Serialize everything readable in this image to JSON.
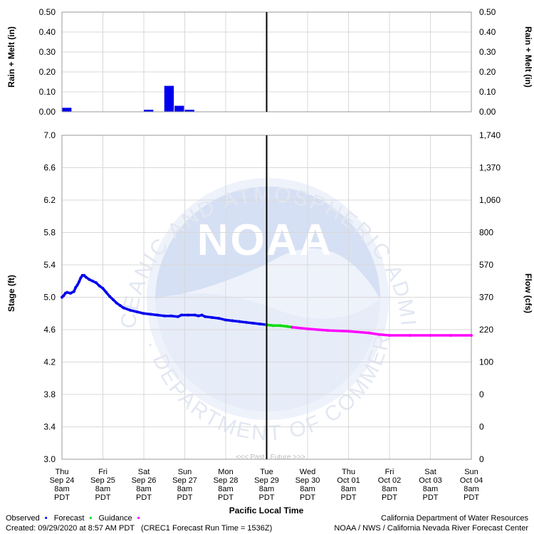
{
  "chart_data": [
    {
      "type": "bar",
      "ylabel_left": "Rain + Melt (in)",
      "ylabel_right": "Rain + Melt (in)",
      "yticks": [
        "0.00",
        "0.10",
        "0.20",
        "0.30",
        "0.40",
        "0.50"
      ],
      "ylim": [
        0,
        0.5
      ],
      "xlim_hours": [
        0,
        240
      ],
      "bar_width_hours": 6,
      "bars": [
        {
          "t": 3,
          "v": 0.02
        },
        {
          "t": 51,
          "v": 0.01
        },
        {
          "t": 63,
          "v": 0.13
        },
        {
          "t": 69,
          "v": 0.03
        },
        {
          "t": 75,
          "v": 0.01
        }
      ],
      "color": "#0000ee"
    },
    {
      "type": "line",
      "ylabel_left": "Stage (ft)",
      "ylabel_right": "Flow (cfs)",
      "xlabel": "Pacific Local Time",
      "ylim": [
        3.0,
        7.0
      ],
      "yticks_left": [
        "3.0",
        "3.4",
        "3.8",
        "4.2",
        "4.6",
        "5.0",
        "5.4",
        "5.8",
        "6.2",
        "6.6",
        "7.0"
      ],
      "yticks_right": [
        "0",
        "0",
        "0",
        "100",
        "220",
        "370",
        "570",
        "800",
        "1,060",
        "1,370",
        "1,740"
      ],
      "x_categories": [
        [
          "Thu",
          "Sep 24",
          "8am",
          "PDT"
        ],
        [
          "Fri",
          "Sep 25",
          "8am",
          "PDT"
        ],
        [
          "Sat",
          "Sep 26",
          "8am",
          "PDT"
        ],
        [
          "Sun",
          "Sep 27",
          "8am",
          "PDT"
        ],
        [
          "Mon",
          "Sep 28",
          "8am",
          "PDT"
        ],
        [
          "Tue",
          "Sep 29",
          "8am",
          "PDT"
        ],
        [
          "Wed",
          "Sep 30",
          "8am",
          "PDT"
        ],
        [
          "Thu",
          "Oct 01",
          "8am",
          "PDT"
        ],
        [
          "Fri",
          "Oct 02",
          "8am",
          "PDT"
        ],
        [
          "Sat",
          "Oct 03",
          "8am",
          "PDT"
        ],
        [
          "Sun",
          "Oct 04",
          "8am",
          "PDT"
        ]
      ],
      "now_hours": 120,
      "past_future_label": "<<< Past   Future >>>",
      "series": [
        {
          "name": "Observed",
          "color": "#0000ee",
          "points": [
            [
              0,
              5.0
            ],
            [
              1,
              5.02
            ],
            [
              2,
              5.05
            ],
            [
              3,
              5.06
            ],
            [
              5,
              5.05
            ],
            [
              7,
              5.07
            ],
            [
              8,
              5.12
            ],
            [
              9,
              5.15
            ],
            [
              10,
              5.19
            ],
            [
              11,
              5.24
            ],
            [
              12,
              5.27
            ],
            [
              13,
              5.27
            ],
            [
              14,
              5.25
            ],
            [
              16,
              5.22
            ],
            [
              18,
              5.2
            ],
            [
              20,
              5.18
            ],
            [
              22,
              5.14
            ],
            [
              24,
              5.11
            ],
            [
              26,
              5.06
            ],
            [
              28,
              5.01
            ],
            [
              30,
              4.97
            ],
            [
              32,
              4.93
            ],
            [
              34,
              4.9
            ],
            [
              36,
              4.87
            ],
            [
              40,
              4.84
            ],
            [
              44,
              4.82
            ],
            [
              48,
              4.8
            ],
            [
              52,
              4.79
            ],
            [
              56,
              4.78
            ],
            [
              60,
              4.77
            ],
            [
              64,
              4.77
            ],
            [
              68,
              4.76
            ],
            [
              70,
              4.78
            ],
            [
              74,
              4.78
            ],
            [
              78,
              4.78
            ],
            [
              80,
              4.77
            ],
            [
              82,
              4.78
            ],
            [
              84,
              4.76
            ],
            [
              88,
              4.75
            ],
            [
              92,
              4.74
            ],
            [
              96,
              4.72
            ],
            [
              100,
              4.71
            ],
            [
              104,
              4.7
            ],
            [
              108,
              4.69
            ],
            [
              112,
              4.68
            ],
            [
              116,
              4.67
            ],
            [
              120,
              4.66
            ]
          ]
        },
        {
          "name": "Forecast",
          "color": "#00dd00",
          "points": [
            [
              120,
              4.66
            ],
            [
              124,
              4.65
            ],
            [
              128,
              4.65
            ],
            [
              132,
              4.64
            ],
            [
              135,
              4.63
            ]
          ]
        },
        {
          "name": "Guidance",
          "color": "#ff00ff",
          "points": [
            [
              135,
              4.63
            ],
            [
              144,
              4.61
            ],
            [
              156,
              4.59
            ],
            [
              168,
              4.58
            ],
            [
              180,
              4.56
            ],
            [
              186,
              4.54
            ],
            [
              192,
              4.53
            ],
            [
              204,
              4.53
            ],
            [
              216,
              4.53
            ],
            [
              228,
              4.53
            ],
            [
              240,
              4.53
            ]
          ]
        }
      ]
    }
  ],
  "watermark": {
    "top_text": "NATIONAL OCEANIC AND ATMOSPHERIC ADMINISTRATION",
    "bottom_text": "U.S. DEPARTMENT OF COMMERCE",
    "logo_text": "NOAA"
  },
  "footer": {
    "legend_observed": "Observed",
    "legend_forecast": "Forecast",
    "legend_guidance": "Guidance",
    "created": "Created: 09/29/2020 at 8:57 AM PDT   (CREC1 Forecast Run Time = 1536Z)",
    "agency1": "California Department of Water Resources",
    "agency2": "NOAA / NWS / California Nevada River Forecast Center"
  }
}
